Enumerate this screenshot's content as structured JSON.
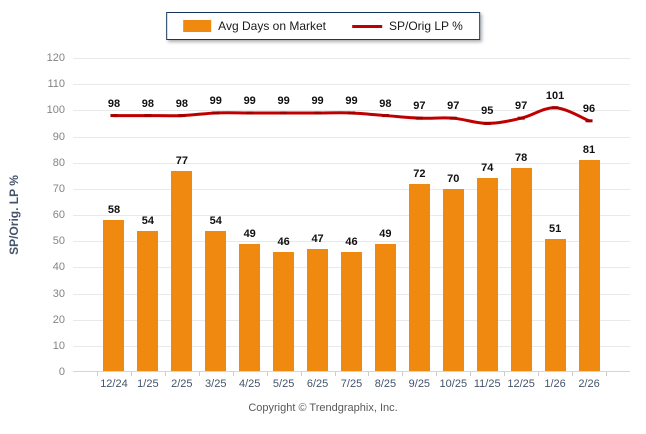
{
  "legend": {
    "items": [
      {
        "label": "Avg Days on Market",
        "type": "bar",
        "color": "#F0890F"
      },
      {
        "label": "SP/Orig LP %",
        "type": "line",
        "color": "#C00000"
      }
    ]
  },
  "footer": {
    "text": "Copyright © Trendgraphix, Inc."
  },
  "chart_data": {
    "type": "bar+line",
    "title": "",
    "categories": [
      "12/24",
      "1/25",
      "2/25",
      "3/25",
      "4/25",
      "5/25",
      "6/25",
      "7/25",
      "8/25",
      "9/25",
      "10/25",
      "11/25",
      "12/25",
      "1/26",
      "2/26"
    ],
    "series": [
      {
        "name": "Avg Days on Market",
        "type": "bar",
        "color": "#F0890F",
        "values": [
          58,
          54,
          77,
          54,
          49,
          46,
          47,
          46,
          49,
          72,
          70,
          74,
          78,
          51,
          81
        ]
      },
      {
        "name": "SP/Orig LP %",
        "type": "line",
        "color": "#C00000",
        "marker_color": "#A00000",
        "values": [
          98,
          98,
          98,
          99,
          99,
          99,
          99,
          99,
          98,
          97,
          97,
          95,
          97,
          101,
          96
        ]
      }
    ],
    "xlabel": "",
    "ylabel": "SP/Orig. LP %",
    "ylim": [
      0,
      120
    ],
    "ytick_step": 10,
    "grid": true,
    "legend_position": "top-center",
    "value_labels": true
  }
}
